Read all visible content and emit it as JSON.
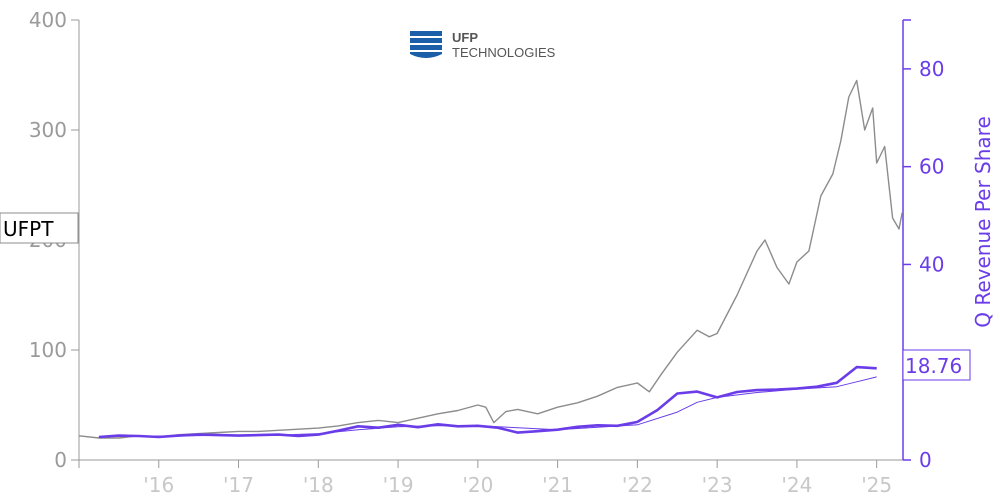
{
  "logo": {
    "name": "UFP",
    "subtitle": "TECHNOLOGIES"
  },
  "chart_data": {
    "type": "line",
    "ticker_label": "UFPT",
    "last_value_label": "18.76",
    "xlabel": "",
    "x_ticks": [
      "'16",
      "'17",
      "'18",
      "'19",
      "'20",
      "'21",
      "'22",
      "'23",
      "'24",
      "'25"
    ],
    "xlim": [
      2015.0,
      2025.33
    ],
    "y_left": {
      "label": "",
      "ticks": [
        0,
        100,
        200,
        300,
        400
      ],
      "ylim": [
        0,
        400
      ]
    },
    "y_right": {
      "label": "Q Revenue Per Share",
      "ticks": [
        0,
        20,
        40,
        60,
        80
      ],
      "ylim": [
        0,
        90
      ]
    },
    "grid": false,
    "colors": {
      "price": "#8c8c8c",
      "revenue": "#6a3de8",
      "left_axis": "#9a9a9a",
      "right_axis": "#6a3de8"
    },
    "series": [
      {
        "axis": "left",
        "points": [
          [
            2015.0,
            22
          ],
          [
            2015.25,
            20
          ],
          [
            2015.5,
            20
          ],
          [
            2015.75,
            22
          ],
          [
            2016.0,
            21
          ],
          [
            2016.25,
            23
          ],
          [
            2016.5,
            24
          ],
          [
            2016.75,
            25
          ],
          [
            2017.0,
            26
          ],
          [
            2017.25,
            26
          ],
          [
            2017.5,
            27
          ],
          [
            2017.75,
            28
          ],
          [
            2018.0,
            29
          ],
          [
            2018.25,
            31
          ],
          [
            2018.5,
            34
          ],
          [
            2018.75,
            36
          ],
          [
            2019.0,
            34
          ],
          [
            2019.25,
            38
          ],
          [
            2019.5,
            42
          ],
          [
            2019.75,
            45
          ],
          [
            2020.0,
            50
          ],
          [
            2020.1,
            48
          ],
          [
            2020.2,
            34
          ],
          [
            2020.35,
            44
          ],
          [
            2020.5,
            46
          ],
          [
            2020.75,
            42
          ],
          [
            2021.0,
            48
          ],
          [
            2021.25,
            52
          ],
          [
            2021.5,
            58
          ],
          [
            2021.75,
            66
          ],
          [
            2022.0,
            70
          ],
          [
            2022.15,
            62
          ],
          [
            2022.3,
            78
          ],
          [
            2022.5,
            98
          ],
          [
            2022.75,
            118
          ],
          [
            2022.9,
            112
          ],
          [
            2023.0,
            115
          ],
          [
            2023.25,
            150
          ],
          [
            2023.5,
            190
          ],
          [
            2023.6,
            200
          ],
          [
            2023.75,
            175
          ],
          [
            2023.9,
            160
          ],
          [
            2024.0,
            180
          ],
          [
            2024.15,
            190
          ],
          [
            2024.3,
            240
          ],
          [
            2024.45,
            260
          ],
          [
            2024.55,
            290
          ],
          [
            2024.65,
            330
          ],
          [
            2024.75,
            345
          ],
          [
            2024.85,
            300
          ],
          [
            2024.95,
            320
          ],
          [
            2025.0,
            270
          ],
          [
            2025.1,
            285
          ],
          [
            2025.2,
            220
          ],
          [
            2025.28,
            210
          ],
          [
            2025.32,
            225
          ]
        ]
      },
      {
        "name": "Q Revenue Per Share",
        "axis": "right",
        "points": [
          [
            2015.25,
            4.7
          ],
          [
            2015.5,
            5.0
          ],
          [
            2015.75,
            4.9
          ],
          [
            2016.0,
            4.7
          ],
          [
            2016.25,
            5.0
          ],
          [
            2016.5,
            5.2
          ],
          [
            2016.75,
            5.1
          ],
          [
            2017.0,
            5.0
          ],
          [
            2017.25,
            5.1
          ],
          [
            2017.5,
            5.2
          ],
          [
            2017.75,
            4.9
          ],
          [
            2018.0,
            5.2
          ],
          [
            2018.25,
            6.0
          ],
          [
            2018.5,
            6.9
          ],
          [
            2018.75,
            6.6
          ],
          [
            2019.0,
            7.2
          ],
          [
            2019.25,
            6.7
          ],
          [
            2019.5,
            7.3
          ],
          [
            2019.75,
            6.9
          ],
          [
            2020.0,
            7.0
          ],
          [
            2020.25,
            6.6
          ],
          [
            2020.5,
            5.6
          ],
          [
            2020.75,
            5.9
          ],
          [
            2021.0,
            6.2
          ],
          [
            2021.25,
            6.8
          ],
          [
            2021.5,
            7.1
          ],
          [
            2021.75,
            7.0
          ],
          [
            2022.0,
            7.8
          ],
          [
            2022.25,
            10.2
          ],
          [
            2022.5,
            13.6
          ],
          [
            2022.75,
            14.0
          ],
          [
            2023.0,
            12.8
          ],
          [
            2023.25,
            13.9
          ],
          [
            2023.5,
            14.3
          ],
          [
            2023.75,
            14.4
          ],
          [
            2024.0,
            14.6
          ],
          [
            2024.25,
            15.0
          ],
          [
            2024.5,
            15.8
          ],
          [
            2024.75,
            19.0
          ],
          [
            2025.0,
            18.76
          ]
        ]
      },
      {
        "axis": "right",
        "points": [
          [
            2015.25,
            4.8
          ],
          [
            2016.0,
            4.9
          ],
          [
            2016.5,
            5.0
          ],
          [
            2017.0,
            5.1
          ],
          [
            2017.5,
            5.1
          ],
          [
            2018.0,
            5.4
          ],
          [
            2018.5,
            6.2
          ],
          [
            2019.0,
            6.8
          ],
          [
            2019.5,
            7.0
          ],
          [
            2020.0,
            7.0
          ],
          [
            2020.5,
            6.6
          ],
          [
            2021.0,
            6.2
          ],
          [
            2021.5,
            6.7
          ],
          [
            2022.0,
            7.2
          ],
          [
            2022.5,
            9.8
          ],
          [
            2022.75,
            11.8
          ],
          [
            2023.0,
            12.8
          ],
          [
            2023.5,
            13.8
          ],
          [
            2024.0,
            14.5
          ],
          [
            2024.5,
            15.0
          ],
          [
            2024.75,
            16.0
          ],
          [
            2025.0,
            17.0
          ]
        ]
      }
    ]
  }
}
